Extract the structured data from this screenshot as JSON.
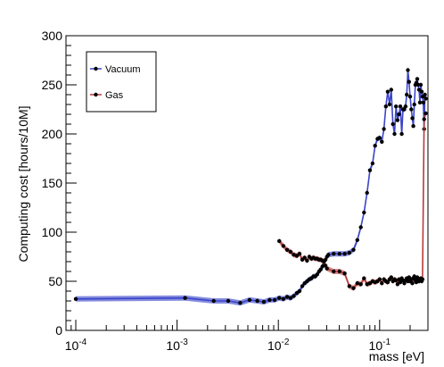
{
  "chart_data": {
    "type": "line",
    "title": "",
    "xlabel": "mass [eV]",
    "ylabel": "Computing cost [hours/10M]",
    "x_scale": "log",
    "xlim": [
      8e-05,
      0.3
    ],
    "ylim": [
      0,
      300
    ],
    "x_tick_labels": [
      {
        "value": 0.0001,
        "base": "10",
        "exp": "-4"
      },
      {
        "value": 0.001,
        "base": "10",
        "exp": "-3"
      },
      {
        "value": 0.01,
        "base": "10",
        "exp": "-2"
      },
      {
        "value": 0.1,
        "base": "10",
        "exp": "-1"
      }
    ],
    "y_ticks": [
      0,
      50,
      100,
      150,
      200,
      250,
      300
    ],
    "y_tick_labels": [
      "0",
      "50",
      "100",
      "150",
      "200",
      "250",
      "300"
    ],
    "grid": false,
    "legend": {
      "position": "top-left"
    },
    "series": [
      {
        "name": "Vacuum",
        "color": "#3b44c8",
        "band_color": "#6f78d8",
        "points": [
          [
            0.0001,
            32
          ],
          [
            0.0012,
            33
          ],
          [
            0.0023,
            30
          ],
          [
            0.0032,
            30
          ],
          [
            0.0042,
            28
          ],
          [
            0.0052,
            31
          ],
          [
            0.0062,
            30
          ],
          [
            0.0072,
            29
          ],
          [
            0.0082,
            31
          ],
          [
            0.0092,
            31
          ],
          [
            0.0102,
            33
          ],
          [
            0.0112,
            32
          ],
          [
            0.0122,
            34
          ],
          [
            0.0132,
            33
          ],
          [
            0.0142,
            35
          ],
          [
            0.0152,
            38
          ],
          [
            0.0162,
            40
          ],
          [
            0.0172,
            45
          ],
          [
            0.0182,
            48
          ],
          [
            0.0192,
            50
          ],
          [
            0.0202,
            52
          ],
          [
            0.0212,
            53
          ],
          [
            0.0222,
            55
          ],
          [
            0.0232,
            55
          ],
          [
            0.0242,
            57
          ],
          [
            0.0252,
            60
          ],
          [
            0.0262,
            62
          ],
          [
            0.0272,
            65
          ],
          [
            0.0282,
            67
          ],
          [
            0.0292,
            72
          ],
          [
            0.0302,
            75
          ],
          [
            0.0312,
            77
          ],
          [
            0.0352,
            78
          ],
          [
            0.0402,
            78
          ],
          [
            0.0452,
            78
          ],
          [
            0.0502,
            79
          ],
          [
            0.0552,
            82
          ],
          [
            0.0602,
            92
          ],
          [
            0.0652,
            105
          ],
          [
            0.0702,
            120
          ],
          [
            0.0752,
            140
          ],
          [
            0.0802,
            163
          ],
          [
            0.0852,
            170
          ],
          [
            0.0902,
            188
          ],
          [
            0.0952,
            195
          ],
          [
            0.1002,
            196
          ],
          [
            0.1052,
            192
          ],
          [
            0.1102,
            205
          ],
          [
            0.1152,
            228
          ],
          [
            0.1202,
            243
          ],
          [
            0.1252,
            230
          ],
          [
            0.1302,
            245
          ],
          [
            0.1352,
            210
          ],
          [
            0.1402,
            200
          ],
          [
            0.1452,
            228
          ],
          [
            0.1502,
            214
          ],
          [
            0.1552,
            220
          ],
          [
            0.1602,
            228
          ],
          [
            0.1652,
            200
          ],
          [
            0.1702,
            225
          ],
          [
            0.1752,
            225
          ],
          [
            0.1802,
            228
          ],
          [
            0.1852,
            240
          ],
          [
            0.1902,
            265
          ],
          [
            0.1952,
            253
          ],
          [
            0.2002,
            238
          ],
          [
            0.2052,
            225
          ],
          [
            0.2102,
            216
          ],
          [
            0.2152,
            208
          ],
          [
            0.2202,
            230
          ],
          [
            0.2252,
            250
          ],
          [
            0.2302,
            252
          ],
          [
            0.2352,
            256
          ],
          [
            0.2402,
            250
          ],
          [
            0.2452,
            245
          ],
          [
            0.2502,
            232
          ],
          [
            0.2552,
            250
          ],
          [
            0.2602,
            243
          ],
          [
            0.2652,
            238
          ],
          [
            0.2702,
            232
          ],
          [
            0.2752,
            205
          ],
          [
            0.2802,
            240
          ],
          [
            0.2852,
            236
          ]
        ]
      },
      {
        "name": "Gas",
        "color": "#b93a3a",
        "band_color": "#d77878",
        "points": [
          [
            0.0102,
            91
          ],
          [
            0.0112,
            86
          ],
          [
            0.0122,
            82
          ],
          [
            0.0132,
            80
          ],
          [
            0.0142,
            77
          ],
          [
            0.0152,
            76
          ],
          [
            0.0162,
            78
          ],
          [
            0.0172,
            72
          ],
          [
            0.0182,
            74
          ],
          [
            0.0192,
            71
          ],
          [
            0.0202,
            75
          ],
          [
            0.0212,
            73
          ],
          [
            0.0222,
            74
          ],
          [
            0.0232,
            73
          ],
          [
            0.0242,
            73
          ],
          [
            0.0252,
            72
          ],
          [
            0.0262,
            72
          ],
          [
            0.0272,
            71
          ],
          [
            0.0282,
            70
          ],
          [
            0.0292,
            66
          ],
          [
            0.0302,
            63
          ],
          [
            0.0352,
            60
          ],
          [
            0.0402,
            60
          ],
          [
            0.0452,
            58
          ],
          [
            0.0502,
            45
          ],
          [
            0.0552,
            43
          ],
          [
            0.0602,
            48
          ],
          [
            0.0652,
            47
          ],
          [
            0.0702,
            53
          ],
          [
            0.0752,
            47
          ],
          [
            0.0802,
            48
          ],
          [
            0.0852,
            50
          ],
          [
            0.0902,
            49
          ],
          [
            0.0952,
            50
          ],
          [
            0.1002,
            52
          ],
          [
            0.1052,
            48
          ],
          [
            0.1102,
            52
          ],
          [
            0.1152,
            50
          ],
          [
            0.1202,
            49
          ],
          [
            0.1252,
            52
          ],
          [
            0.1302,
            54
          ],
          [
            0.1352,
            50
          ],
          [
            0.1402,
            52
          ],
          [
            0.1452,
            51
          ],
          [
            0.1502,
            47
          ],
          [
            0.1552,
            52
          ],
          [
            0.1602,
            49
          ],
          [
            0.1652,
            53
          ],
          [
            0.1702,
            51
          ],
          [
            0.1752,
            48
          ],
          [
            0.1802,
            51
          ],
          [
            0.1852,
            53
          ],
          [
            0.1902,
            50
          ],
          [
            0.1952,
            54
          ],
          [
            0.2002,
            50
          ],
          [
            0.2052,
            52
          ],
          [
            0.2102,
            48
          ],
          [
            0.2152,
            53
          ],
          [
            0.2202,
            55
          ],
          [
            0.2252,
            51
          ],
          [
            0.2302,
            49
          ],
          [
            0.2352,
            54
          ],
          [
            0.2402,
            52
          ],
          [
            0.2452,
            50
          ],
          [
            0.2502,
            51
          ],
          [
            0.2552,
            53
          ],
          [
            0.2602,
            50
          ],
          [
            0.2652,
            52
          ],
          [
            0.2752,
            215
          ],
          [
            0.2852,
            221
          ]
        ]
      }
    ]
  }
}
